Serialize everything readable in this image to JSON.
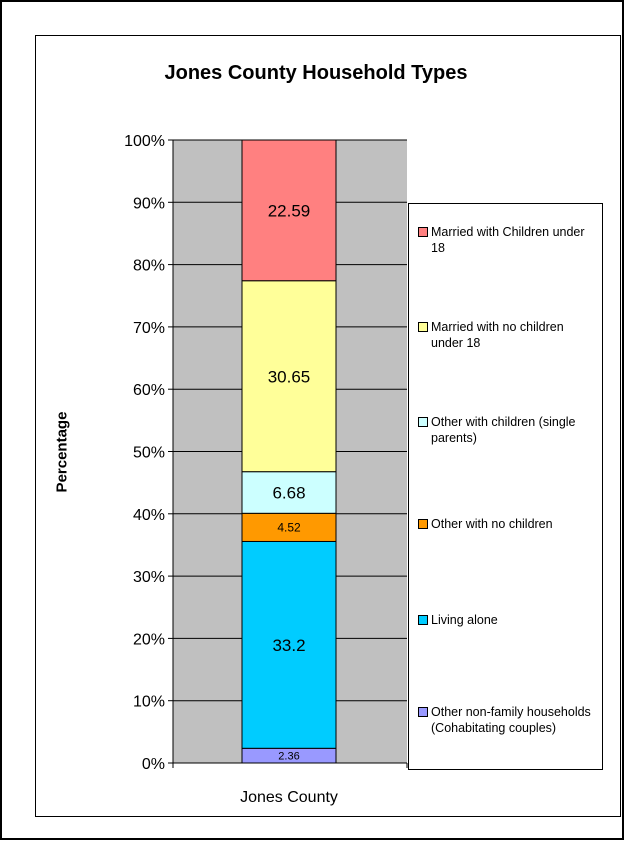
{
  "chart_data": {
    "type": "bar",
    "stacked": true,
    "percent_stacked": true,
    "title": "Jones County Household Types",
    "xlabel": "",
    "ylabel": "Percentage",
    "categories": [
      "Jones County"
    ],
    "ylim": [
      0,
      100
    ],
    "yticks": [
      "0%",
      "10%",
      "20%",
      "30%",
      "40%",
      "50%",
      "60%",
      "70%",
      "80%",
      "90%",
      "100%"
    ],
    "grid": true,
    "legend_position": "right",
    "series": [
      {
        "name": "Other non-family households (Cohabitating couples)",
        "values": [
          2.36
        ],
        "label": "2.36",
        "color": "#9999FF"
      },
      {
        "name": "Living alone",
        "values": [
          33.2
        ],
        "label": "33.2",
        "color": "#00CCFF"
      },
      {
        "name": "Other with no children",
        "values": [
          4.52
        ],
        "label": "4.52",
        "color": "#FF9900"
      },
      {
        "name": "Other with children (single parents)",
        "values": [
          6.68
        ],
        "label": "6.68",
        "color": "#CCFFFF"
      },
      {
        "name": "Married with no children under 18",
        "values": [
          30.65
        ],
        "label": "30.65",
        "color": "#FFFF99"
      },
      {
        "name": "Married with Children under 18",
        "values": [
          22.59
        ],
        "label": "22.59",
        "color": "#FF8080"
      }
    ],
    "legend": [
      {
        "label": "Married with Children under 18",
        "color": "#FF8080"
      },
      {
        "label": "Married with no children under 18",
        "color": "#FFFF99"
      },
      {
        "label": "Other with children (single parents)",
        "color": "#CCFFFF"
      },
      {
        "label": "Other with no children",
        "color": "#FF9900"
      },
      {
        "label": "Living alone",
        "color": "#00CCFF"
      },
      {
        "label": "Other non-family households (Cohabitating couples)",
        "color": "#9999FF"
      }
    ],
    "plot_background": "#C0C0C0"
  }
}
